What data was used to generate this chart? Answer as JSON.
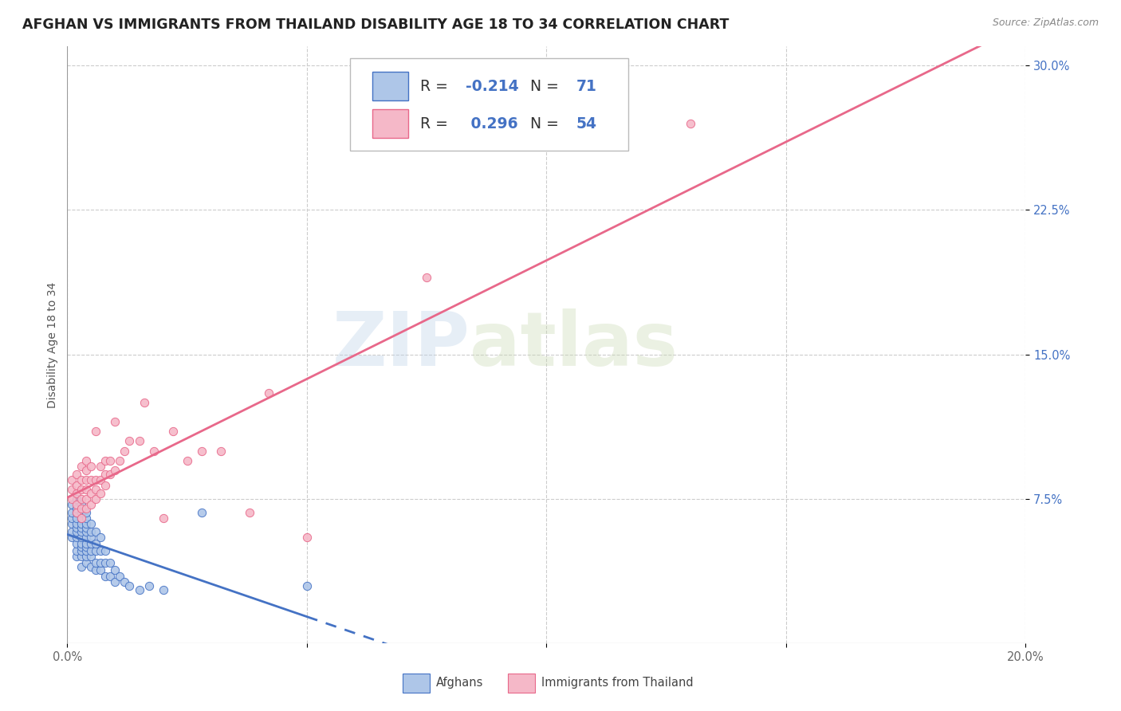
{
  "title": "AFGHAN VS IMMIGRANTS FROM THAILAND DISABILITY AGE 18 TO 34 CORRELATION CHART",
  "source": "Source: ZipAtlas.com",
  "ylabel": "Disability Age 18 to 34",
  "xlim": [
    0.0,
    0.2
  ],
  "ylim": [
    0.0,
    0.31
  ],
  "legend_R_afghan": "-0.214",
  "legend_N_afghan": "71",
  "legend_R_thailand": "0.296",
  "legend_N_thailand": "54",
  "afghan_color": "#aec6e8",
  "thailand_color": "#f5b8c8",
  "trendline_afghan_color": "#4472c4",
  "trendline_thailand_color": "#e8688a",
  "background_color": "#ffffff",
  "watermark_zip": "ZIP",
  "watermark_atlas": "atlas",
  "grid_color": "#cccccc",
  "title_fontsize": 12.5,
  "axis_label_fontsize": 10,
  "tick_fontsize": 10.5,
  "afghan_x": [
    0.001,
    0.001,
    0.001,
    0.001,
    0.001,
    0.001,
    0.002,
    0.002,
    0.002,
    0.002,
    0.002,
    0.002,
    0.002,
    0.002,
    0.002,
    0.002,
    0.002,
    0.003,
    0.003,
    0.003,
    0.003,
    0.003,
    0.003,
    0.003,
    0.003,
    0.003,
    0.003,
    0.003,
    0.003,
    0.004,
    0.004,
    0.004,
    0.004,
    0.004,
    0.004,
    0.004,
    0.004,
    0.004,
    0.004,
    0.004,
    0.005,
    0.005,
    0.005,
    0.005,
    0.005,
    0.005,
    0.005,
    0.006,
    0.006,
    0.006,
    0.006,
    0.006,
    0.007,
    0.007,
    0.007,
    0.007,
    0.008,
    0.008,
    0.008,
    0.009,
    0.009,
    0.01,
    0.01,
    0.011,
    0.012,
    0.013,
    0.015,
    0.017,
    0.02,
    0.028,
    0.05
  ],
  "afghan_y": [
    0.055,
    0.058,
    0.062,
    0.065,
    0.068,
    0.072,
    0.045,
    0.048,
    0.052,
    0.055,
    0.058,
    0.06,
    0.062,
    0.065,
    0.068,
    0.07,
    0.075,
    0.04,
    0.045,
    0.048,
    0.05,
    0.052,
    0.055,
    0.058,
    0.06,
    0.062,
    0.065,
    0.068,
    0.072,
    0.042,
    0.045,
    0.048,
    0.05,
    0.052,
    0.055,
    0.058,
    0.06,
    0.062,
    0.065,
    0.068,
    0.04,
    0.045,
    0.048,
    0.052,
    0.055,
    0.058,
    0.062,
    0.038,
    0.042,
    0.048,
    0.052,
    0.058,
    0.038,
    0.042,
    0.048,
    0.055,
    0.035,
    0.042,
    0.048,
    0.035,
    0.042,
    0.032,
    0.038,
    0.035,
    0.032,
    0.03,
    0.028,
    0.03,
    0.028,
    0.068,
    0.03
  ],
  "thailand_x": [
    0.001,
    0.001,
    0.001,
    0.002,
    0.002,
    0.002,
    0.002,
    0.002,
    0.003,
    0.003,
    0.003,
    0.003,
    0.003,
    0.003,
    0.004,
    0.004,
    0.004,
    0.004,
    0.004,
    0.004,
    0.005,
    0.005,
    0.005,
    0.005,
    0.006,
    0.006,
    0.006,
    0.006,
    0.007,
    0.007,
    0.007,
    0.008,
    0.008,
    0.008,
    0.009,
    0.009,
    0.01,
    0.01,
    0.011,
    0.012,
    0.013,
    0.015,
    0.016,
    0.018,
    0.02,
    0.022,
    0.025,
    0.028,
    0.032,
    0.038,
    0.042,
    0.05,
    0.075,
    0.13
  ],
  "thailand_y": [
    0.075,
    0.08,
    0.085,
    0.068,
    0.072,
    0.078,
    0.082,
    0.088,
    0.065,
    0.07,
    0.075,
    0.08,
    0.085,
    0.092,
    0.07,
    0.075,
    0.08,
    0.085,
    0.09,
    0.095,
    0.072,
    0.078,
    0.085,
    0.092,
    0.075,
    0.08,
    0.085,
    0.11,
    0.078,
    0.085,
    0.092,
    0.082,
    0.088,
    0.095,
    0.088,
    0.095,
    0.09,
    0.115,
    0.095,
    0.1,
    0.105,
    0.105,
    0.125,
    0.1,
    0.065,
    0.11,
    0.095,
    0.1,
    0.1,
    0.068,
    0.13,
    0.055,
    0.19,
    0.27
  ]
}
